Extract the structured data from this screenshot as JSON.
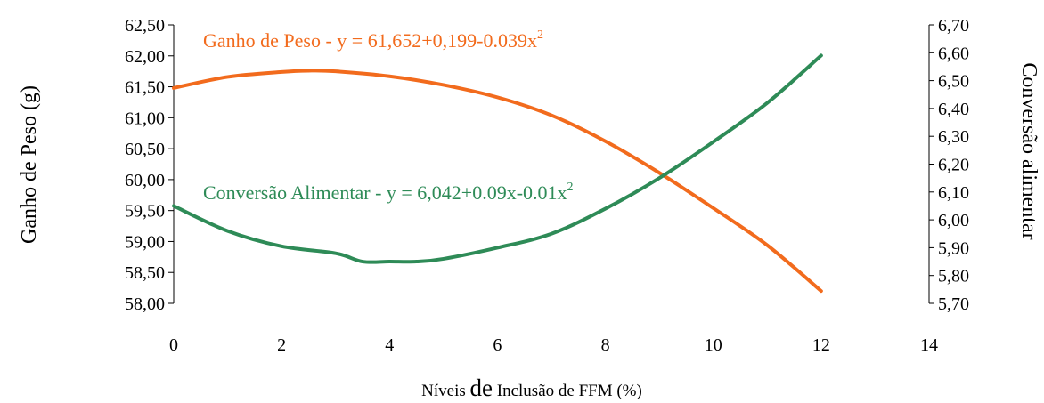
{
  "chart_data": {
    "type": "line",
    "title": "",
    "xlabel_parts": [
      "Níveis ",
      "de",
      " Inclusão de FFM (%)"
    ],
    "ylabel_left": "Ganho de Peso (g)",
    "ylabel_right": "Conversão alimentar",
    "xlim": [
      0,
      14
    ],
    "x_ticks": [
      "0",
      "2",
      "4",
      "6",
      "8",
      "10",
      "12",
      "14"
    ],
    "ylim_left": [
      58.0,
      62.5
    ],
    "y_left_ticks": [
      "62,50",
      "62,00",
      "61,50",
      "61,00",
      "60,50",
      "60,00",
      "59,50",
      "59,00",
      "58,50",
      "58,00"
    ],
    "ylim_right": [
      5.7,
      6.7
    ],
    "y_right_ticks": [
      "6,70",
      "6,60",
      "6,50",
      "6,40",
      "6,30",
      "6,20",
      "6,10",
      "6,00",
      "5,90",
      "5,80",
      "5,70"
    ],
    "grid": false,
    "legend": "none",
    "series": [
      {
        "name": "Ganho de Peso",
        "axis": "left",
        "color": "#F26B1D",
        "x": [
          0,
          1,
          2,
          2.5,
          3,
          4,
          5,
          6,
          7,
          8,
          9,
          10,
          11,
          12
        ],
        "y": [
          61.48,
          61.66,
          61.74,
          61.76,
          61.75,
          61.67,
          61.53,
          61.33,
          61.04,
          60.62,
          60.11,
          59.54,
          58.94,
          58.2
        ]
      },
      {
        "name": "Conversão Alimentar",
        "axis": "right",
        "color": "#2E8B57",
        "x": [
          0,
          1,
          2,
          3,
          3.5,
          4,
          4.5,
          5,
          6,
          7,
          8,
          9,
          10,
          11,
          12
        ],
        "y": [
          6.05,
          5.96,
          5.905,
          5.88,
          5.85,
          5.85,
          5.85,
          5.86,
          5.9,
          5.95,
          6.04,
          6.15,
          6.28,
          6.42,
          6.59
        ]
      }
    ],
    "annotations": [
      {
        "name": "ganho-annotation",
        "color": "#F26B1D",
        "text": "Ganho de Peso - y = 61,652+0,199-0.039x",
        "sup": "2"
      },
      {
        "name": "conversao-annotation",
        "color": "#2E8B57",
        "text": "Conversão Alimentar - y = 6,042+0.09x-0.01x",
        "sup": "2"
      }
    ]
  }
}
